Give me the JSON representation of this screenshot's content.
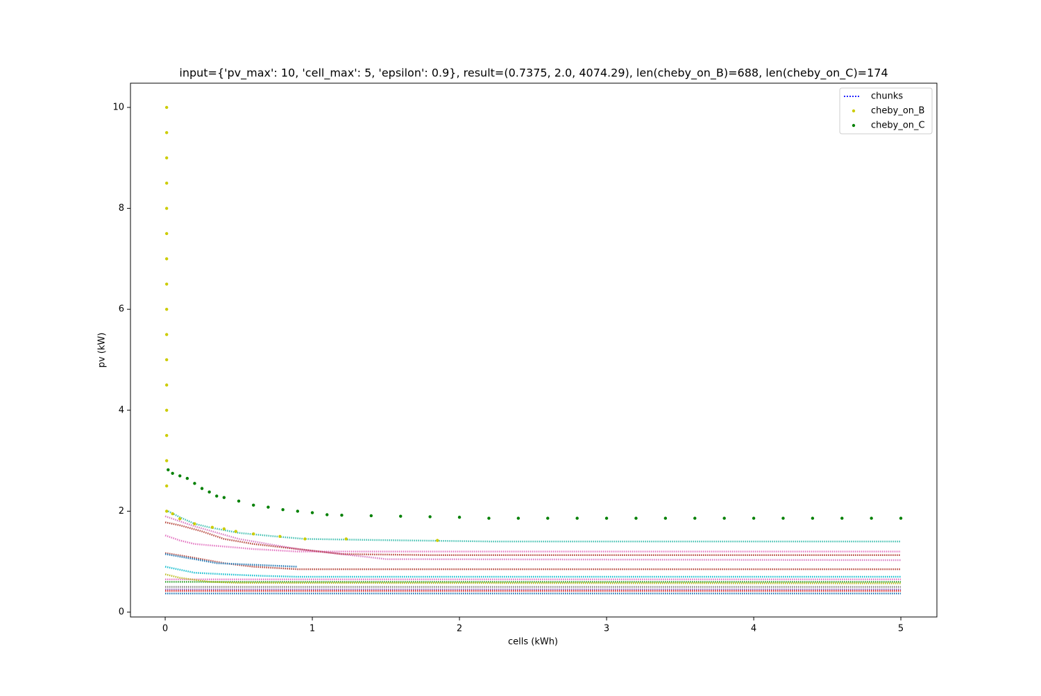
{
  "chart_data": {
    "type": "scatter",
    "title": "input={'pv_max': 10, 'cell_max': 5, 'epsilon': 0.9}, result=(0.7375, 2.0, 4074.29), len(cheby_on_B)=688, len(cheby_on_C)=174",
    "x_label": "cells (kWh)",
    "y_label": "pv (kW)",
    "xlim": [
      -0.236,
      5.245
    ],
    "ylim": [
      -0.096,
      10.48
    ],
    "xticks": [
      0,
      1,
      2,
      3,
      4,
      5
    ],
    "yticks": [
      0,
      2,
      4,
      6,
      8,
      10
    ],
    "grid": false,
    "legend": "upper right",
    "series": [
      {
        "name": "chunks",
        "color": "blue",
        "style": "dotted",
        "lines": [
          {
            "color": "#40bfb0",
            "x": [
              0.02,
              0.1,
              0.2,
              0.3,
              0.5,
              0.75,
              0.95,
              1.4,
              2.2,
              5
            ],
            "values": [
              2.0,
              1.88,
              1.75,
              1.68,
              1.57,
              1.5,
              1.45,
              1.43,
              1.4,
              1.4
            ]
          },
          {
            "color": "#e377c2",
            "x": [
              0,
              0.1,
              0.2,
              0.4,
              0.6,
              0.9,
              1.3,
              1.8,
              5
            ],
            "values": [
              1.52,
              1.42,
              1.35,
              1.3,
              1.25,
              1.2,
              1.2,
              1.2,
              1.2
            ]
          },
          {
            "color": "#b5443a",
            "x": [
              0,
              0.1,
              0.25,
              0.4,
              0.6,
              0.9,
              1.2,
              1.8,
              5
            ],
            "values": [
              1.78,
              1.72,
              1.6,
              1.45,
              1.35,
              1.25,
              1.15,
              1.13,
              1.13
            ]
          },
          {
            "color": "#d97fc4",
            "x": [
              0,
              0.2,
              0.5,
              0.9,
              1.5,
              5
            ],
            "values": [
              1.9,
              1.7,
              1.45,
              1.25,
              1.05,
              1.03
            ]
          },
          {
            "color": "#b5443a",
            "x": [
              0,
              0.15,
              0.4,
              0.6,
              0.9,
              5
            ],
            "values": [
              1.17,
              1.1,
              0.97,
              0.9,
              0.85,
              0.85
            ]
          },
          {
            "color": "#1f77b4",
            "x": [
              0,
              0.2,
              0.35,
              0.9
            ],
            "values": [
              1.15,
              1.05,
              0.97,
              0.9
            ]
          },
          {
            "color": "#17becf",
            "x": [
              0,
              0.2,
              0.4,
              0.65,
              0.9,
              5
            ],
            "values": [
              0.9,
              0.78,
              0.75,
              0.72,
              0.7,
              0.7
            ]
          },
          {
            "color": "#e377c2",
            "x": [
              0,
              5
            ],
            "values": [
              0.65,
              0.65
            ]
          },
          {
            "color": "#2ca02c",
            "x": [
              0,
              5
            ],
            "values": [
              0.6,
              0.6
            ]
          },
          {
            "color": "#bcbd22",
            "x": [
              0,
              0.1,
              0.3,
              0.5,
              5
            ],
            "values": [
              0.75,
              0.68,
              0.6,
              0.58,
              0.57
            ]
          },
          {
            "color": "#7f7f7f",
            "x": [
              0,
              5
            ],
            "values": [
              0.5,
              0.5
            ]
          },
          {
            "color": "#9467bd",
            "x": [
              0,
              5
            ],
            "values": [
              0.45,
              0.45
            ]
          },
          {
            "color": "#d62728",
            "x": [
              0,
              5
            ],
            "values": [
              0.42,
              0.42
            ]
          },
          {
            "color": "#1f77b4",
            "x": [
              0,
              5
            ],
            "values": [
              0.37,
              0.37
            ]
          }
        ]
      },
      {
        "name": "cheby_on_B",
        "color": "#cccc00",
        "x": [
          0.01,
          0.01,
          0.01,
          0.01,
          0.01,
          0.01,
          0.01,
          0.01,
          0.01,
          0.01,
          0.01,
          0.01,
          0.01,
          0.01,
          0.01,
          0.01,
          0.01,
          0.05,
          0.1,
          0.2,
          0.32,
          0.4,
          0.48,
          0.6,
          0.78,
          0.95,
          1.23,
          1.85
        ],
        "values": [
          2,
          2.5,
          3,
          3.5,
          4,
          4.5,
          5,
          5.5,
          6,
          6.5,
          7,
          7.5,
          8,
          8.5,
          9,
          9.5,
          10,
          1.95,
          1.85,
          1.75,
          1.68,
          1.65,
          1.6,
          1.55,
          1.5,
          1.45,
          1.45,
          1.42
        ]
      },
      {
        "name": "cheby_on_C",
        "color": "green",
        "x": [
          0.02,
          0.05,
          0.1,
          0.15,
          0.2,
          0.25,
          0.3,
          0.35,
          0.4,
          0.5,
          0.6,
          0.7,
          0.8,
          0.9,
          1.0,
          1.1,
          1.2,
          1.4,
          1.6,
          1.8,
          2.0,
          2.2,
          2.4,
          2.6,
          2.8,
          3.0,
          3.2,
          3.4,
          3.6,
          3.8,
          4.0,
          4.2,
          4.4,
          4.6,
          4.8,
          5.0
        ],
        "values": [
          2.82,
          2.75,
          2.7,
          2.65,
          2.55,
          2.45,
          2.38,
          2.3,
          2.27,
          2.2,
          2.12,
          2.08,
          2.03,
          2.0,
          1.97,
          1.93,
          1.92,
          1.91,
          1.9,
          1.89,
          1.88,
          1.86,
          1.86,
          1.86,
          1.86,
          1.86,
          1.86,
          1.86,
          1.86,
          1.86,
          1.86,
          1.86,
          1.86,
          1.86,
          1.86,
          1.86
        ]
      }
    ]
  }
}
